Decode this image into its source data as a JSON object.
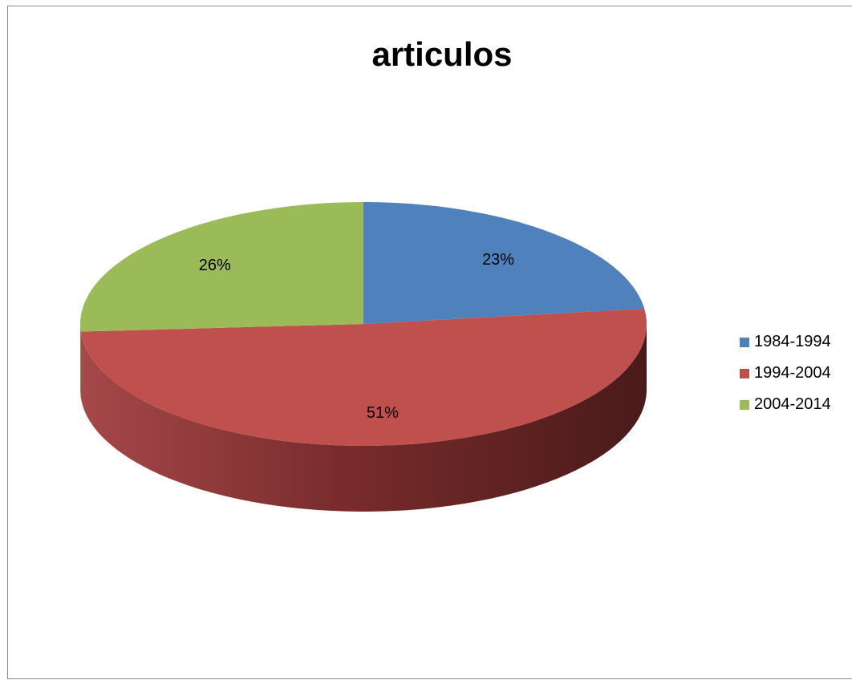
{
  "chart_data": {
    "type": "pie",
    "title": "articulos",
    "categories": [
      "1984-1994",
      "1994-2004",
      "2004-2014"
    ],
    "values": [
      23,
      51,
      26
    ],
    "labels": [
      "23%",
      "51%",
      "26%"
    ],
    "colors": [
      "#4f81bd",
      "#c0504d",
      "#9bbb59"
    ],
    "side_colors": [
      "#385d8a",
      "#8c3836",
      "#71893f"
    ],
    "legend_position": "right",
    "style": "3d"
  }
}
